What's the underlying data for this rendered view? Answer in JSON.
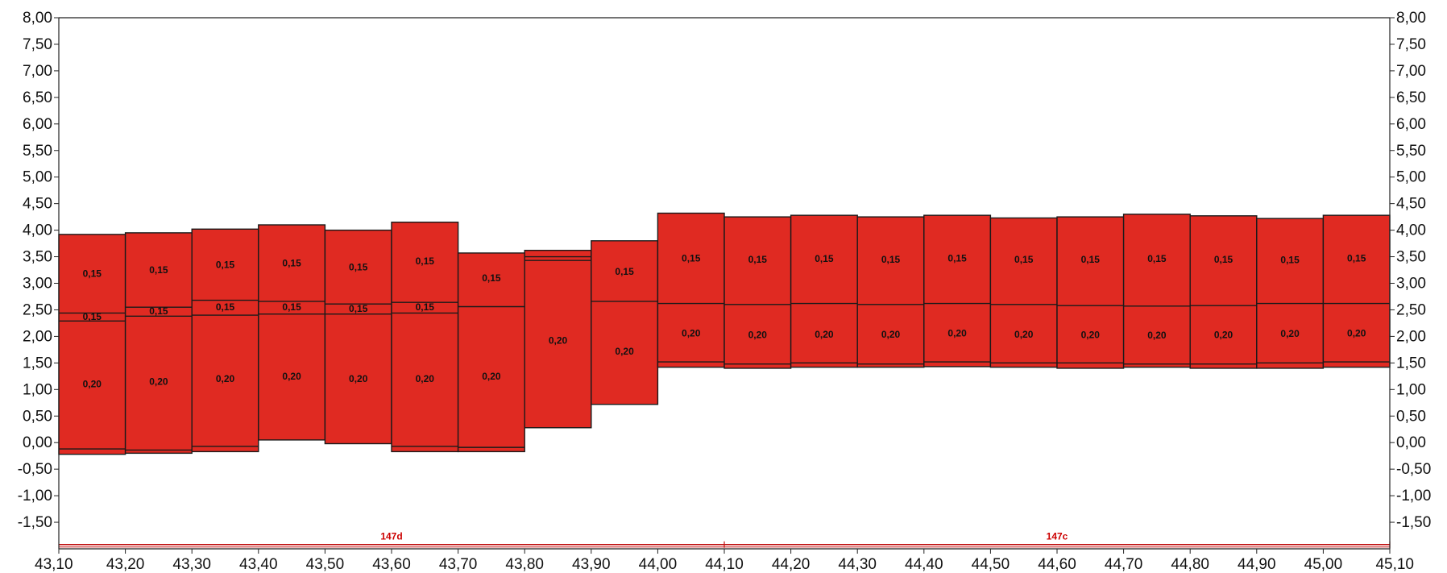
{
  "chart_data": {
    "type": "bar",
    "subtype": "stacked-floating-layers",
    "title": "",
    "xlabel": "",
    "ylabel": "",
    "xlim": [
      43.1,
      45.1
    ],
    "ylim": [
      -2.0,
      8.0
    ],
    "y_ticks": [
      "8,00",
      "7,50",
      "7,00",
      "6,50",
      "6,00",
      "5,50",
      "5,00",
      "4,50",
      "4,00",
      "3,50",
      "3,00",
      "2,50",
      "2,00",
      "1,50",
      "1,00",
      "0,50",
      "0,00",
      "-0,50",
      "-1,00",
      "-1,50"
    ],
    "y_tick_values": [
      8.0,
      7.5,
      7.0,
      6.5,
      6.0,
      5.5,
      5.0,
      4.5,
      4.0,
      3.5,
      3.0,
      2.5,
      2.0,
      1.5,
      1.0,
      0.5,
      0.0,
      -0.5,
      -1.0,
      -1.5
    ],
    "x_ticks": [
      "43,10",
      "43,20",
      "43,30",
      "43,40",
      "43,50",
      "43,60",
      "43,70",
      "43,80",
      "43,90",
      "44,00",
      "44,10",
      "44,20",
      "44,30",
      "44,40",
      "44,50",
      "44,60",
      "44,70",
      "44,80",
      "44,90",
      "45,00",
      "45,10"
    ],
    "x_tick_values": [
      43.1,
      43.2,
      43.3,
      43.4,
      43.5,
      43.6,
      43.7,
      43.8,
      43.9,
      44.0,
      44.1,
      44.2,
      44.3,
      44.4,
      44.5,
      44.6,
      44.7,
      44.8,
      44.9,
      45.0,
      45.1
    ],
    "grid": false,
    "colors": {
      "fill": "#e02a22",
      "edge": "#1a1a1a",
      "sections": "#c01010"
    },
    "columns": [
      {
        "x0": 43.1,
        "x1": 43.2,
        "bottom": -0.22,
        "boundaries": [
          -0.12,
          2.29,
          2.44
        ],
        "top": 3.92,
        "labels": [
          {
            "text": "0,20",
            "y": 1.1
          },
          {
            "text": "0,15",
            "y": 2.37
          },
          {
            "text": "0,15",
            "y": 3.18
          }
        ]
      },
      {
        "x0": 43.2,
        "x1": 43.3,
        "bottom": -0.2,
        "boundaries": [
          -0.14,
          2.38,
          2.55
        ],
        "top": 3.95,
        "labels": [
          {
            "text": "0,20",
            "y": 1.15
          },
          {
            "text": "0,15",
            "y": 2.48
          },
          {
            "text": "0,15",
            "y": 3.25
          }
        ]
      },
      {
        "x0": 43.3,
        "x1": 43.4,
        "bottom": -0.17,
        "boundaries": [
          -0.07,
          2.4,
          2.68
        ],
        "top": 4.02,
        "labels": [
          {
            "text": "0,20",
            "y": 1.2
          },
          {
            "text": "0,15",
            "y": 2.55
          },
          {
            "text": "0,15",
            "y": 3.35
          }
        ]
      },
      {
        "x0": 43.4,
        "x1": 43.5,
        "bottom": 0.05,
        "boundaries": [
          2.42,
          2.66
        ],
        "top": 4.1,
        "labels": [
          {
            "text": "0,20",
            "y": 1.25
          },
          {
            "text": "0,15",
            "y": 2.55
          },
          {
            "text": "0,15",
            "y": 3.38
          }
        ]
      },
      {
        "x0": 43.5,
        "x1": 43.6,
        "bottom": -0.02,
        "boundaries": [
          2.42,
          2.61
        ],
        "top": 4.0,
        "labels": [
          {
            "text": "0,20",
            "y": 1.2
          },
          {
            "text": "0,15",
            "y": 2.52
          },
          {
            "text": "0,15",
            "y": 3.3
          }
        ]
      },
      {
        "x0": 43.6,
        "x1": 43.7,
        "bottom": -0.17,
        "boundaries": [
          -0.07,
          2.44,
          2.64
        ],
        "top": 4.15,
        "labels": [
          {
            "text": "0,20",
            "y": 1.2
          },
          {
            "text": "0,15",
            "y": 2.55
          },
          {
            "text": "0,15",
            "y": 3.42
          }
        ]
      },
      {
        "x0": 43.7,
        "x1": 43.8,
        "bottom": -0.17,
        "boundaries": [
          -0.09,
          2.56
        ],
        "top": 3.57,
        "labels": [
          {
            "text": "0,20",
            "y": 1.25
          },
          {
            "text": "0,15",
            "y": 3.1
          }
        ]
      },
      {
        "x0": 43.8,
        "x1": 43.9,
        "bottom": 0.28,
        "boundaries": [
          3.43,
          3.5
        ],
        "top": 3.62,
        "labels": [
          {
            "text": "0,20",
            "y": 1.92
          }
        ]
      },
      {
        "x0": 43.9,
        "x1": 44.0,
        "bottom": 0.72,
        "boundaries": [
          2.66
        ],
        "top": 3.8,
        "labels": [
          {
            "text": "0,20",
            "y": 1.72
          },
          {
            "text": "0,15",
            "y": 3.22
          }
        ]
      },
      {
        "x0": 44.0,
        "x1": 44.1,
        "bottom": 1.42,
        "boundaries": [
          1.52,
          2.62
        ],
        "top": 4.32,
        "labels": [
          {
            "text": "0,20",
            "y": 2.06
          },
          {
            "text": "0,15",
            "y": 3.47
          }
        ]
      },
      {
        "x0": 44.1,
        "x1": 44.2,
        "bottom": 1.4,
        "boundaries": [
          1.48,
          2.6
        ],
        "top": 4.25,
        "labels": [
          {
            "text": "0,20",
            "y": 2.03
          },
          {
            "text": "0,15",
            "y": 3.45
          }
        ]
      },
      {
        "x0": 44.2,
        "x1": 44.3,
        "bottom": 1.42,
        "boundaries": [
          1.5,
          2.62
        ],
        "top": 4.28,
        "labels": [
          {
            "text": "0,20",
            "y": 2.04
          },
          {
            "text": "0,15",
            "y": 3.46
          }
        ]
      },
      {
        "x0": 44.3,
        "x1": 44.4,
        "bottom": 1.42,
        "boundaries": [
          1.48,
          2.6
        ],
        "top": 4.25,
        "labels": [
          {
            "text": "0,20",
            "y": 2.04
          },
          {
            "text": "0,15",
            "y": 3.45
          }
        ]
      },
      {
        "x0": 44.4,
        "x1": 44.5,
        "bottom": 1.43,
        "boundaries": [
          1.52,
          2.62
        ],
        "top": 4.28,
        "labels": [
          {
            "text": "0,20",
            "y": 2.06
          },
          {
            "text": "0,15",
            "y": 3.47
          }
        ]
      },
      {
        "x0": 44.5,
        "x1": 44.6,
        "bottom": 1.42,
        "boundaries": [
          1.5,
          2.6
        ],
        "top": 4.23,
        "labels": [
          {
            "text": "0,20",
            "y": 2.04
          },
          {
            "text": "0,15",
            "y": 3.45
          }
        ]
      },
      {
        "x0": 44.6,
        "x1": 44.7,
        "bottom": 1.4,
        "boundaries": [
          1.5,
          2.58
        ],
        "top": 4.25,
        "labels": [
          {
            "text": "0,20",
            "y": 2.03
          },
          {
            "text": "0,15",
            "y": 3.45
          }
        ]
      },
      {
        "x0": 44.7,
        "x1": 44.8,
        "bottom": 1.42,
        "boundaries": [
          1.48,
          2.57
        ],
        "top": 4.3,
        "labels": [
          {
            "text": "0,20",
            "y": 2.02
          },
          {
            "text": "0,15",
            "y": 3.46
          }
        ]
      },
      {
        "x0": 44.8,
        "x1": 44.9,
        "bottom": 1.4,
        "boundaries": [
          1.48,
          2.58
        ],
        "top": 4.27,
        "labels": [
          {
            "text": "0,20",
            "y": 2.03
          },
          {
            "text": "0,15",
            "y": 3.45
          }
        ]
      },
      {
        "x0": 44.9,
        "x1": 45.0,
        "bottom": 1.4,
        "boundaries": [
          1.5,
          2.62
        ],
        "top": 4.22,
        "labels": [
          {
            "text": "0,20",
            "y": 2.05
          },
          {
            "text": "0,15",
            "y": 3.44
          }
        ]
      },
      {
        "x0": 45.0,
        "x1": 45.1,
        "bottom": 1.42,
        "boundaries": [
          1.52,
          2.62
        ],
        "top": 4.28,
        "labels": [
          {
            "text": "0,20",
            "y": 2.06
          },
          {
            "text": "0,15",
            "y": 3.47
          }
        ]
      }
    ],
    "sections": [
      {
        "label": "147d",
        "x0": 43.1,
        "x1": 44.1,
        "y": -1.92
      },
      {
        "label": "147c",
        "x0": 44.1,
        "x1": 45.1,
        "y": -1.92
      }
    ]
  }
}
